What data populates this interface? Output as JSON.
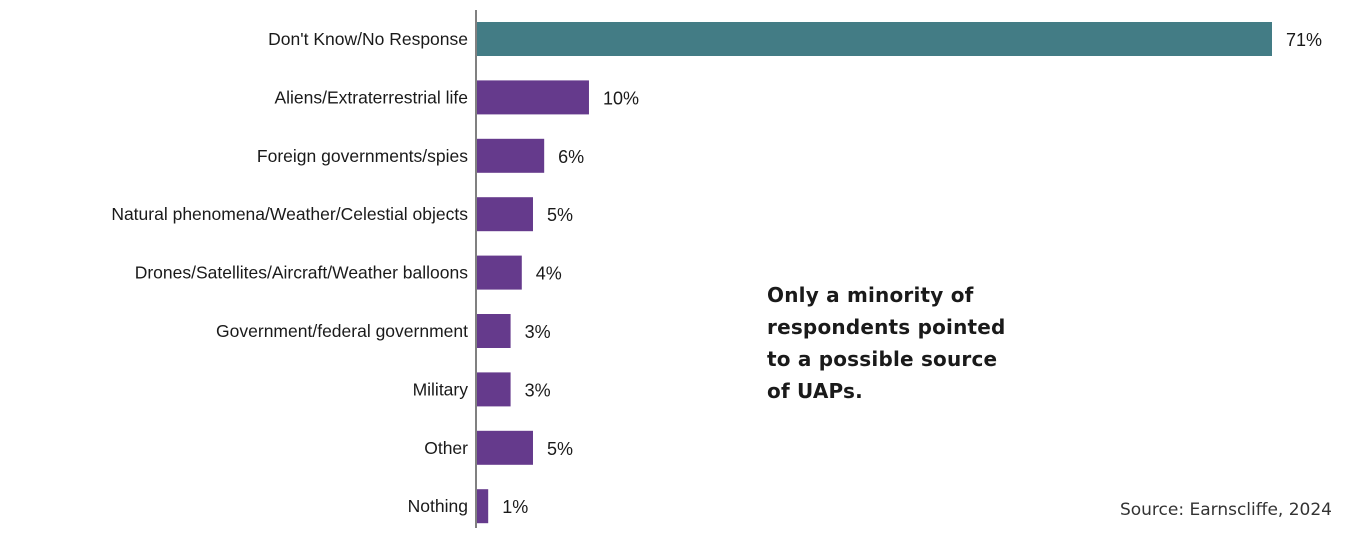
{
  "chart_data": {
    "type": "bar",
    "orientation": "horizontal",
    "categories": [
      "Don't Know/No Response",
      "Aliens/Extraterrestrial life",
      "Foreign governments/spies",
      "Natural phenomena/Weather/Celestial objects",
      "Drones/Satellites/Aircraft/Weather balloons",
      "Government/federal government",
      "Military",
      "Other",
      "Nothing"
    ],
    "values": [
      71,
      10,
      6,
      5,
      4,
      3,
      3,
      5,
      1
    ],
    "value_labels": [
      "71%",
      "10%",
      "6%",
      "5%",
      "4%",
      "3%",
      "3%",
      "5%",
      "1%"
    ],
    "unit": "%",
    "xlim": [
      0,
      71
    ],
    "grid": false,
    "highlight_color": "#437c85",
    "bar_color": "#653a8c",
    "axis_color": "#808080"
  },
  "annotation": "Only a minority of respondents pointed to a possible source of UAPs.",
  "source": "Source: Earnscliffe, 2024"
}
